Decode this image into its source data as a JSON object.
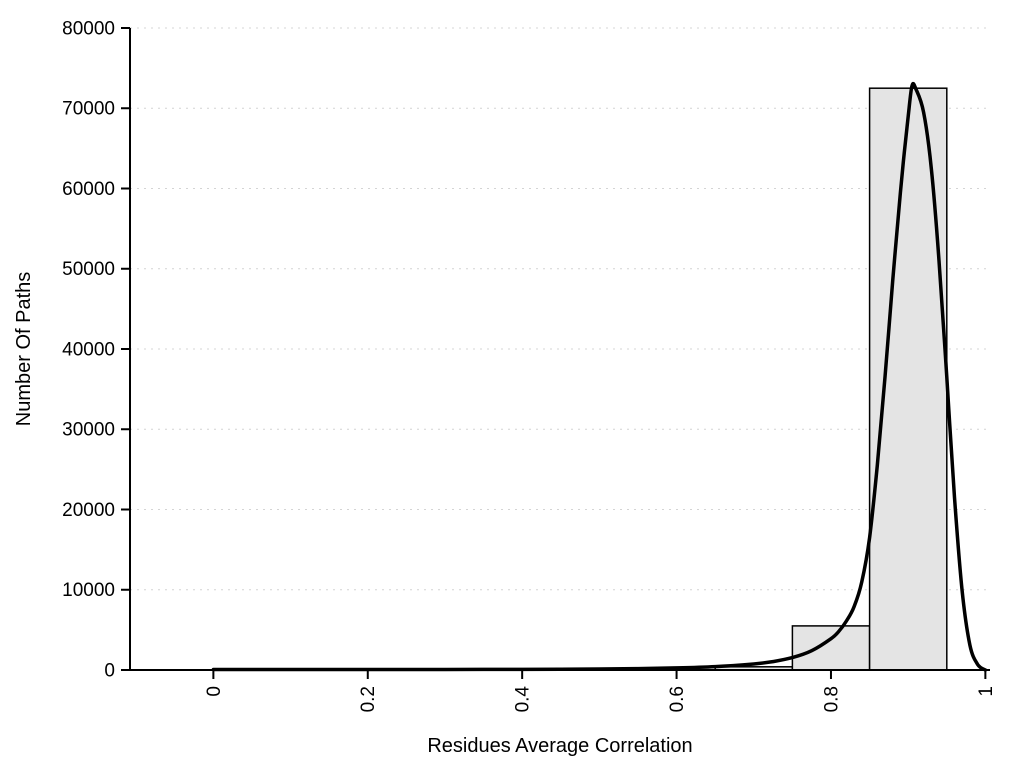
{
  "chart_data": {
    "type": "bar",
    "subtype": "histogram-with-density-curve",
    "title": "",
    "xlabel": "Residues Average Correlation",
    "ylabel": "Number Of Paths",
    "xlim": [
      -0.108,
      1.006
    ],
    "ylim": [
      0,
      80000
    ],
    "x_ticks": [
      0,
      0.2,
      0.4,
      0.6,
      0.8,
      1
    ],
    "x_tick_labels": [
      "0",
      "0.2",
      "0.4",
      "0.6",
      "0.8",
      "1"
    ],
    "y_ticks": [
      0,
      10000,
      20000,
      30000,
      40000,
      50000,
      60000,
      70000,
      80000
    ],
    "y_tick_labels": [
      "0",
      "10000",
      "20000",
      "30000",
      "40000",
      "50000",
      "60000",
      "70000",
      "80000"
    ],
    "grid": "dotted-horizontal",
    "grid_color": "#d4d4d4",
    "axis_color": "#000000",
    "bar_fill": "#e4e4e4",
    "bar_stroke": "#000000",
    "bars": [
      {
        "x0": 0.65,
        "x1": 0.75,
        "count": 400
      },
      {
        "x0": 0.75,
        "x1": 0.85,
        "count": 5500
      },
      {
        "x0": 0.85,
        "x1": 0.95,
        "count": 72500
      }
    ],
    "curve": {
      "name": "density-fit",
      "color": "#000000",
      "points": [
        [
          0.0,
          60
        ],
        [
          0.05,
          60
        ],
        [
          0.1,
          60
        ],
        [
          0.15,
          60
        ],
        [
          0.2,
          60
        ],
        [
          0.25,
          60
        ],
        [
          0.3,
          65
        ],
        [
          0.35,
          70
        ],
        [
          0.4,
          80
        ],
        [
          0.45,
          100
        ],
        [
          0.5,
          130
        ],
        [
          0.55,
          180
        ],
        [
          0.6,
          260
        ],
        [
          0.65,
          420
        ],
        [
          0.7,
          750
        ],
        [
          0.725,
          1050
        ],
        [
          0.75,
          1550
        ],
        [
          0.775,
          2400
        ],
        [
          0.8,
          3900
        ],
        [
          0.81,
          4800
        ],
        [
          0.82,
          6100
        ],
        [
          0.83,
          7900
        ],
        [
          0.84,
          11000
        ],
        [
          0.85,
          16500
        ],
        [
          0.86,
          25500
        ],
        [
          0.87,
          36500
        ],
        [
          0.88,
          48500
        ],
        [
          0.89,
          59500
        ],
        [
          0.895,
          64500
        ],
        [
          0.9,
          69000
        ],
        [
          0.905,
          72800
        ],
        [
          0.91,
          72400
        ],
        [
          0.92,
          69500
        ],
        [
          0.93,
          62500
        ],
        [
          0.94,
          51000
        ],
        [
          0.95,
          36500
        ],
        [
          0.96,
          21500
        ],
        [
          0.97,
          9800
        ],
        [
          0.98,
          3100
        ],
        [
          0.99,
          700
        ],
        [
          1.0,
          0
        ]
      ]
    }
  }
}
